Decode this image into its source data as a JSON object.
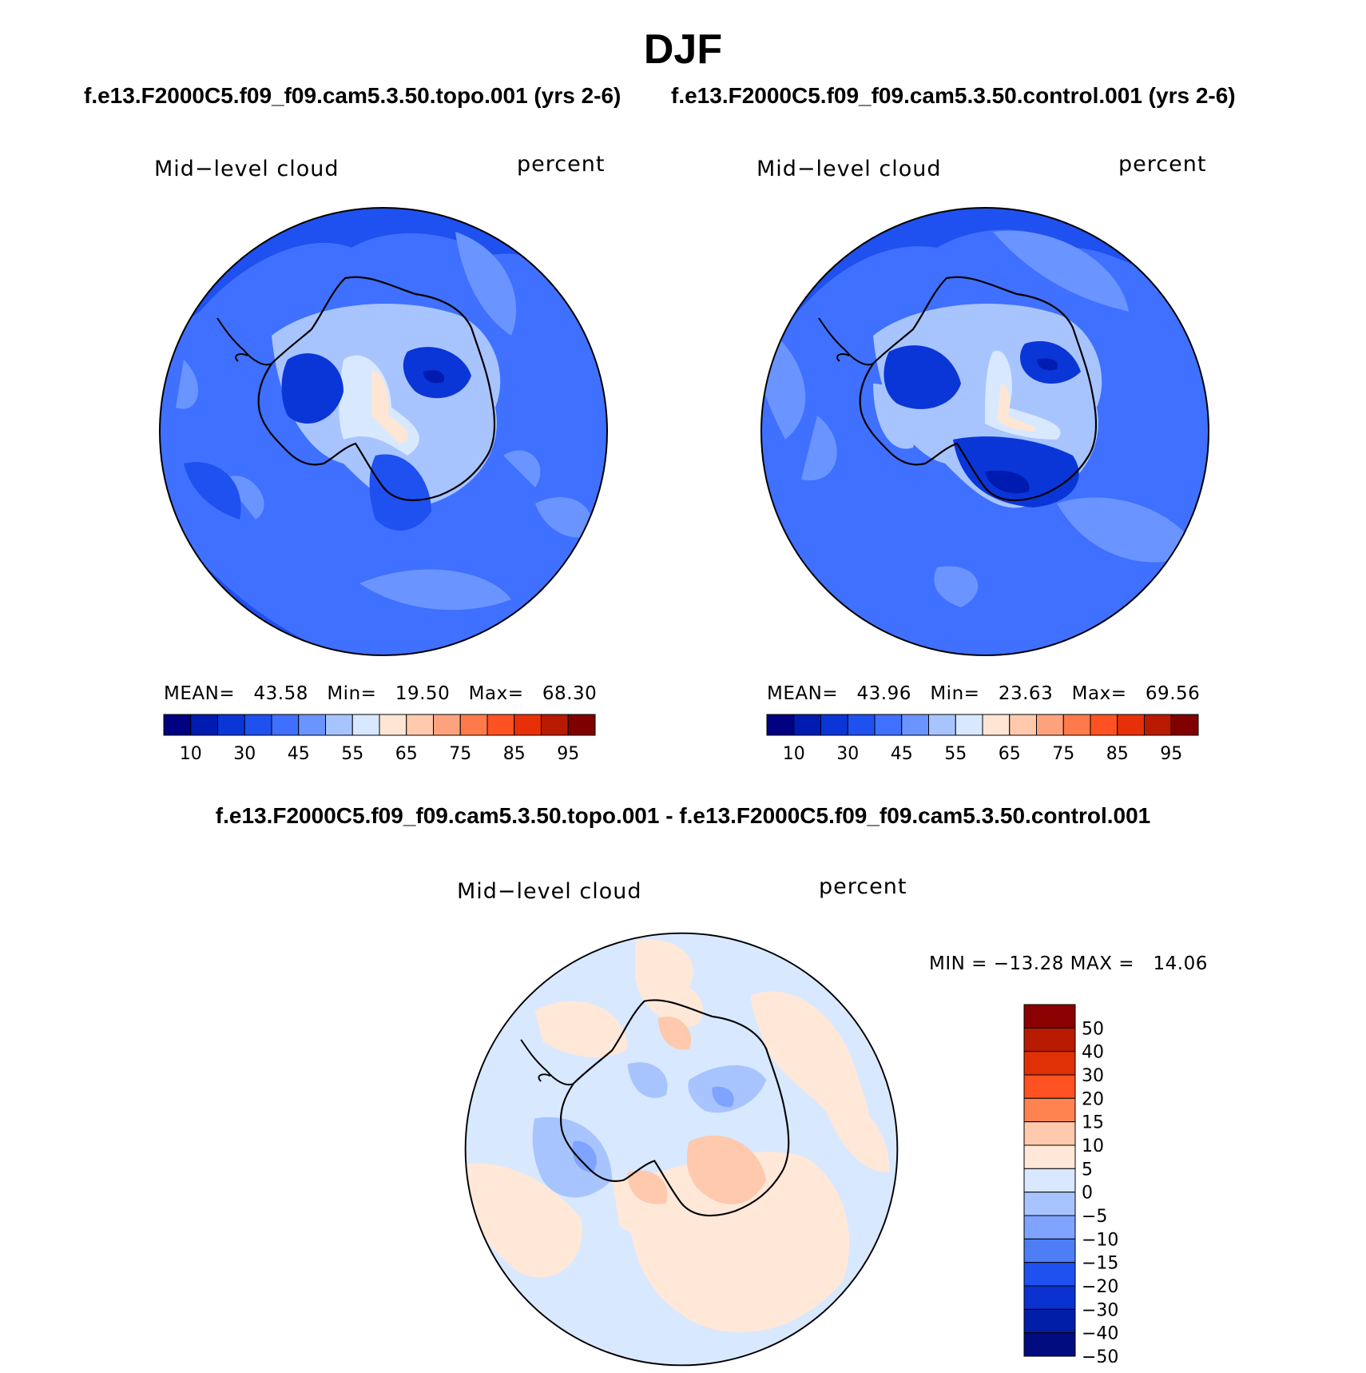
{
  "title": "DJF",
  "panels": [
    {
      "case": "f.e13.F2000C5.f09_f09.cam5.3.50.topo.001 (yrs 2-6)",
      "variable": "Mid−level cloud",
      "units": "percent",
      "stats": {
        "mean_label": "MEAN=",
        "mean": "43.58",
        "min_label": "Min=",
        "min": "19.50",
        "max_label": "Max=",
        "max": "68.30"
      }
    },
    {
      "case": "f.e13.F2000C5.f09_f09.cam5.3.50.control.001 (yrs 2-6)",
      "variable": "Mid−level cloud",
      "units": "percent",
      "stats": {
        "mean_label": "MEAN=",
        "mean": "43.96",
        "min_label": "Min=",
        "min": "23.63",
        "max_label": "Max=",
        "max": "69.56"
      }
    }
  ],
  "diff": {
    "title": "f.e13.F2000C5.f09_f09.cam5.3.50.topo.001 - f.e13.F2000C5.f09_f09.cam5.3.50.control.001",
    "variable": "Mid−level cloud",
    "units": "percent",
    "minmax": "MIN = −13.28 MAX =   14.06"
  },
  "abs_colorbar": {
    "colors": [
      "#000080",
      "#001cb0",
      "#0a36d8",
      "#1f50f0",
      "#3f70ff",
      "#6a94ff",
      "#a8c4ff",
      "#d8e8ff",
      "#ffe6d4",
      "#ffc9ad",
      "#ffa37e",
      "#ff7a4a",
      "#ff5222",
      "#e83008",
      "#b81a00",
      "#800000"
    ],
    "labels": [
      "10",
      "30",
      "45",
      "55",
      "65",
      "75",
      "85",
      "95"
    ]
  },
  "diff_colorbar": {
    "colors": [
      "#8b0000",
      "#b81a00",
      "#e03005",
      "#ff5222",
      "#ff8350",
      "#ffc9ad",
      "#ffe8d8",
      "#d8e8ff",
      "#a8c4ff",
      "#7ea4ff",
      "#4d7ef5",
      "#1f50f0",
      "#0a32d0",
      "#001ea8",
      "#000c80"
    ],
    "labels": [
      "50",
      "40",
      "30",
      "20",
      "15",
      "10",
      "5",
      "0",
      "−5",
      "−10",
      "−15",
      "−20",
      "−30",
      "−40",
      "−50"
    ]
  }
}
